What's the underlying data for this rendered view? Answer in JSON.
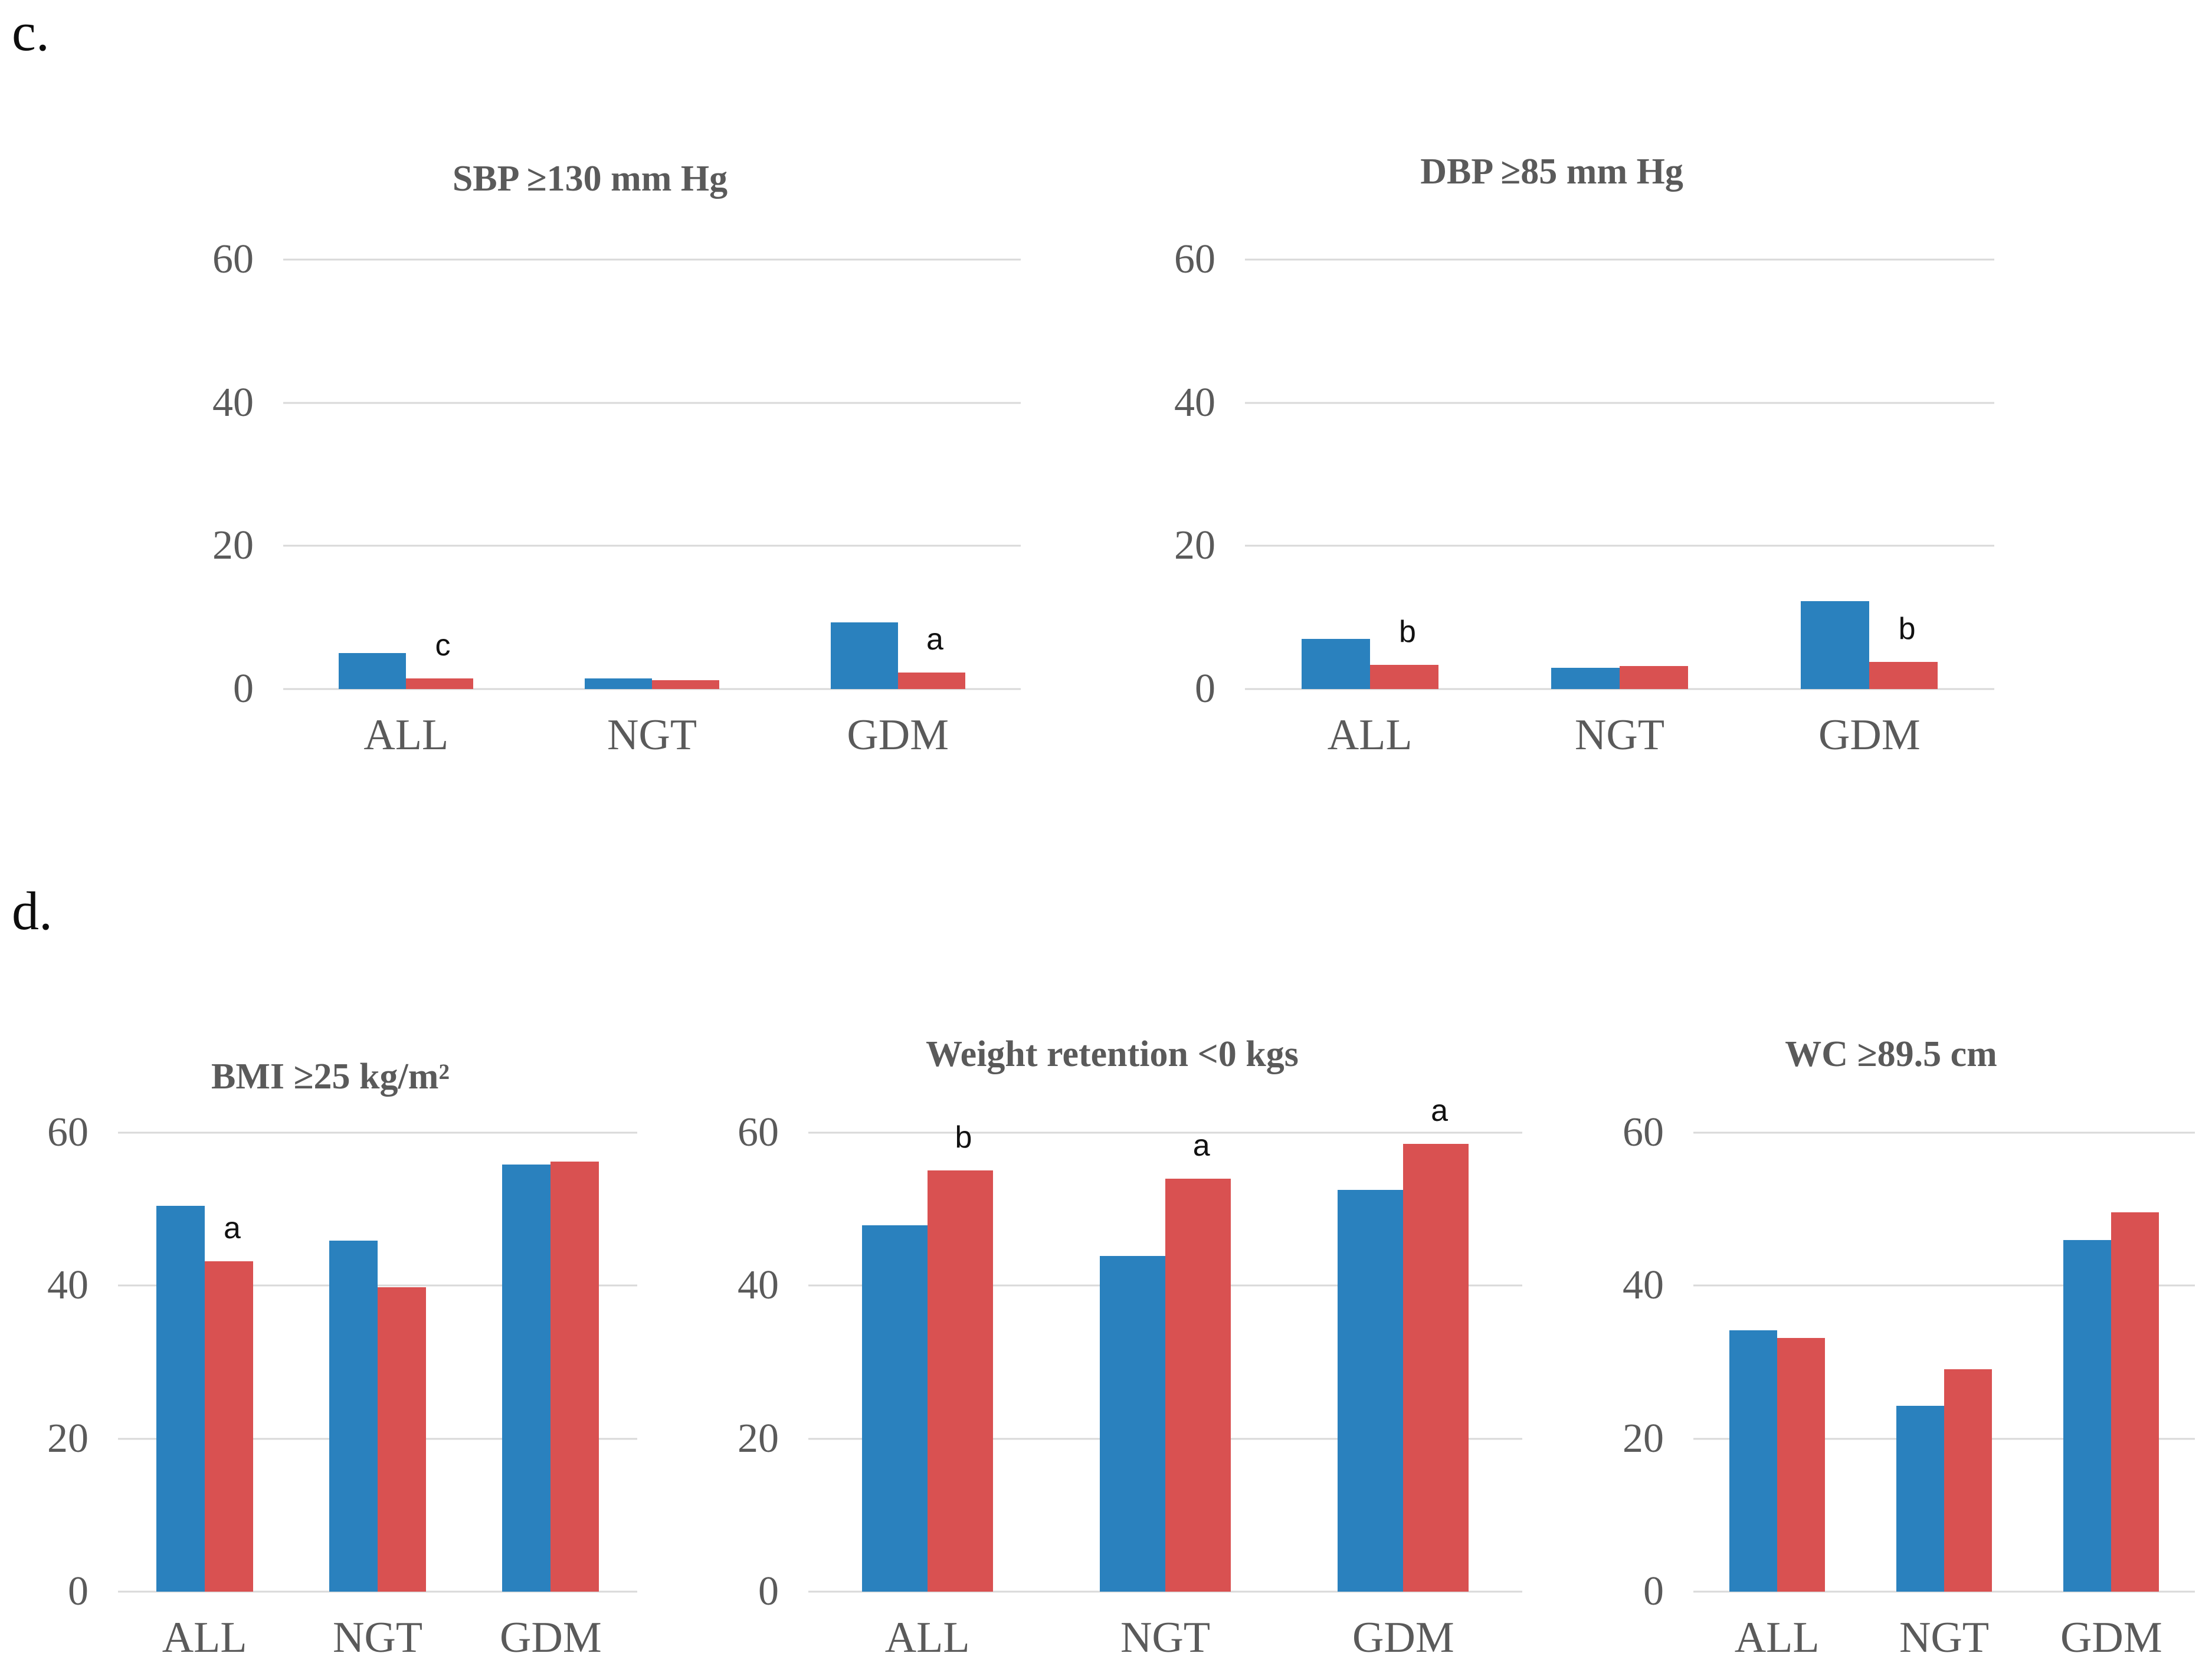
{
  "panel_labels": {
    "c": "c.",
    "d": "d."
  },
  "colors": {
    "series_blue": "#2A81BE",
    "series_red": "#D95151",
    "gridline": "#D9D9D9",
    "axis_text": "#5A5A5A",
    "significance_text": "#111111"
  },
  "chart_data": [
    {
      "type": "bar",
      "title": "SBP ≥130 mm Hg",
      "categories": [
        "ALL",
        "NGT",
        "GDM"
      ],
      "series": [
        {
          "name": "blue-series",
          "color": "#2A81BE",
          "values": [
            5.0,
            1.5,
            9.3
          ]
        },
        {
          "name": "red-series",
          "color": "#D95151",
          "values": [
            1.5,
            1.2,
            2.3
          ],
          "letters": [
            "c",
            "",
            "a"
          ]
        }
      ],
      "xlabel": "",
      "ylabel": "",
      "ylim": [
        0,
        60
      ],
      "yticks": [
        0,
        20,
        40,
        60
      ],
      "grid": true,
      "legend": "none"
    },
    {
      "type": "bar",
      "title": "DBP ≥85 mm Hg",
      "categories": [
        "ALL",
        "NGT",
        "GDM"
      ],
      "series": [
        {
          "name": "blue-series",
          "color": "#2A81BE",
          "values": [
            7.0,
            3.0,
            12.3
          ]
        },
        {
          "name": "red-series",
          "color": "#D95151",
          "values": [
            3.4,
            3.2,
            3.8
          ],
          "letters": [
            "b",
            "",
            "b"
          ]
        }
      ],
      "xlabel": "",
      "ylabel": "",
      "ylim": [
        0,
        60
      ],
      "yticks": [
        0,
        20,
        40,
        60
      ],
      "grid": true,
      "legend": "none"
    },
    {
      "type": "bar",
      "title": "BMI ≥25 kg/m²",
      "categories": [
        "ALL",
        "NGT",
        "GDM"
      ],
      "series": [
        {
          "name": "blue-series",
          "color": "#2A81BE",
          "values": [
            50.4,
            45.9,
            55.8
          ]
        },
        {
          "name": "red-series",
          "color": "#D95151",
          "values": [
            43.2,
            39.8,
            56.2
          ],
          "letters": [
            "a",
            "",
            ""
          ]
        }
      ],
      "xlabel": "",
      "ylabel": "",
      "ylim": [
        0,
        60
      ],
      "yticks": [
        0,
        20,
        40,
        60
      ],
      "grid": true,
      "legend": "none"
    },
    {
      "type": "bar",
      "title": "Weight retention <0 kgs",
      "categories": [
        "ALL",
        "NGT",
        "GDM"
      ],
      "series": [
        {
          "name": "blue-series",
          "color": "#2A81BE",
          "values": [
            47.9,
            43.9,
            52.5
          ]
        },
        {
          "name": "red-series",
          "color": "#D95151",
          "values": [
            55.1,
            54.0,
            58.5
          ],
          "letters": [
            "b",
            "a",
            "a"
          ]
        }
      ],
      "xlabel": "",
      "ylabel": "",
      "ylim": [
        0,
        60
      ],
      "yticks": [
        0,
        20,
        40,
        60
      ],
      "grid": true,
      "legend": "none"
    },
    {
      "type": "bar",
      "title": "WC ≥89.5 cm",
      "categories": [
        "ALL",
        "NGT",
        "GDM"
      ],
      "series": [
        {
          "name": "blue-series",
          "color": "#2A81BE",
          "values": [
            34.2,
            24.3,
            46.0
          ]
        },
        {
          "name": "red-series",
          "color": "#D95151",
          "values": [
            33.2,
            29.1,
            49.6
          ],
          "letters": [
            "",
            "",
            ""
          ]
        }
      ],
      "xlabel": "",
      "ylabel": "",
      "ylim": [
        0,
        60
      ],
      "yticks": [
        0,
        20,
        40,
        60
      ],
      "grid": true,
      "legend": "none"
    }
  ]
}
